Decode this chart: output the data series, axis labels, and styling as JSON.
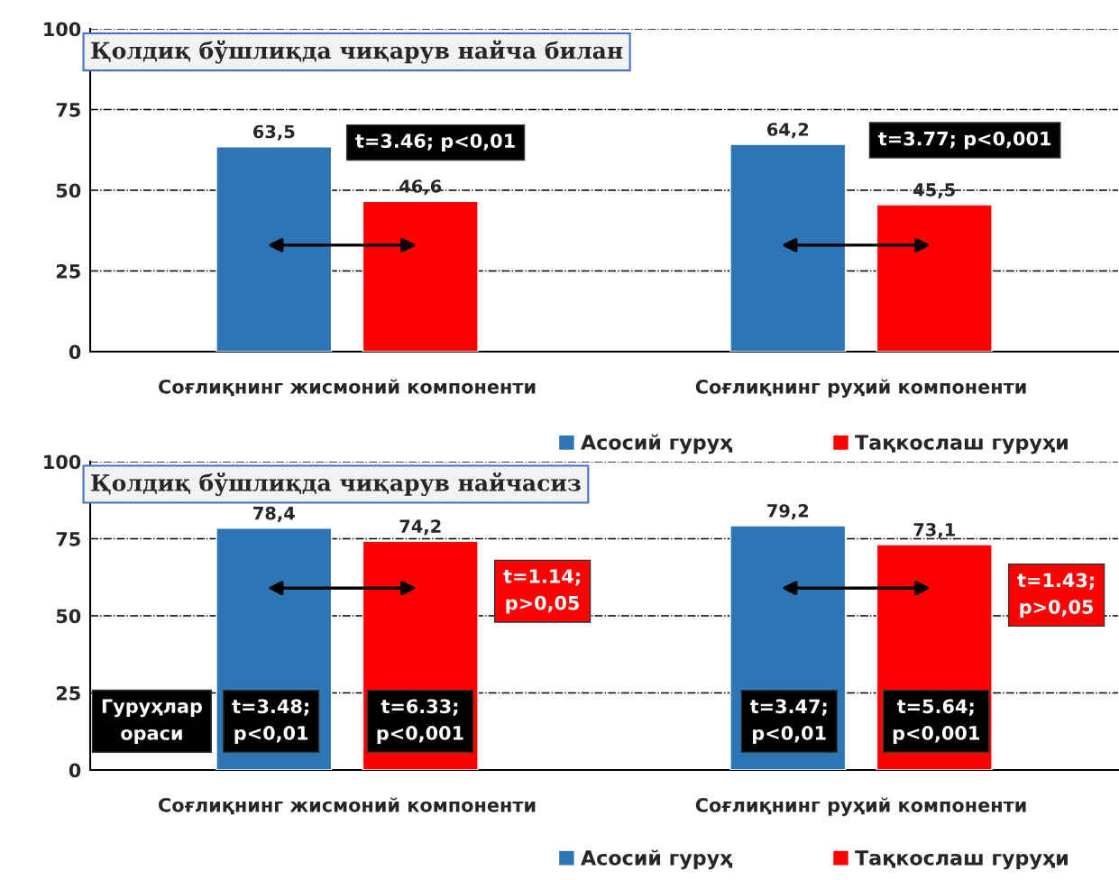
{
  "chart_data": [
    {
      "type": "bar",
      "title": "Қолдиқ бўшлиқда чиқарув найча билан",
      "categories": [
        "Соғлиқнинг жисмоний компоненти",
        "Соғлиқнинг руҳий компоненти"
      ],
      "series": [
        {
          "name": "Асосий гуруҳ",
          "color": "#2e75b6",
          "values": [
            63.5,
            64.2
          ],
          "value_labels": [
            "63,5",
            "64,2"
          ]
        },
        {
          "name": "Тақкослаш гуруҳи",
          "color": "#ff0000",
          "values": [
            46.6,
            45.5
          ],
          "value_labels": [
            "46,6",
            "45,5"
          ]
        }
      ],
      "ylim": [
        0,
        100
      ],
      "yticks": [
        0,
        25,
        50,
        75,
        100
      ],
      "grid": "y",
      "legend": "bottom right",
      "annotations": [
        "t=3.46; p<0,01",
        "t=3.77; p<0,001"
      ]
    },
    {
      "type": "bar",
      "title": "Қолдиқ бўшлиқда чиқарув найчасиз",
      "categories": [
        "Соғлиқнинг жисмоний компоненти",
        "Соғлиқнинг руҳий компоненти"
      ],
      "series": [
        {
          "name": "Асосий гуруҳ",
          "color": "#2e75b6",
          "values": [
            78.4,
            79.2
          ],
          "value_labels": [
            "78,4",
            "79,2"
          ]
        },
        {
          "name": "Тақкослаш гуруҳи",
          "color": "#ff0000",
          "values": [
            74.2,
            73.1
          ],
          "value_labels": [
            "74,2",
            "73,1"
          ]
        }
      ],
      "ylim": [
        0,
        100
      ],
      "yticks": [
        0,
        25,
        50,
        75,
        100
      ],
      "grid": "y",
      "legend": "bottom right",
      "annotations": [
        "t=1.14;\np>0,05",
        "t=1.43;\np>0,05",
        "Гуруҳлар\nораси",
        "t=3.48;\np<0,01",
        "t=6.33;\np<0,001",
        "t=3.47;\np<0,01",
        "t=5.64;\np<0,001"
      ]
    }
  ]
}
